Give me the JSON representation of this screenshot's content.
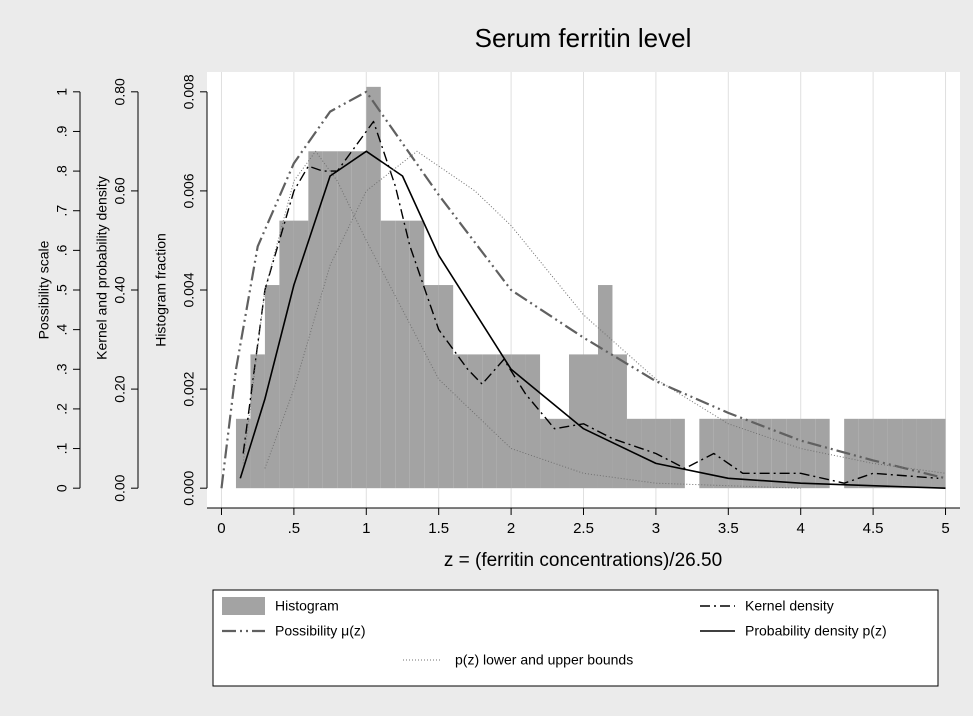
{
  "chart_data": {
    "type": "combo",
    "title": "Serum ferritin level",
    "xlabel": "z = (ferritin concentrations)/26.50",
    "ylabel": "Histogram fraction",
    "y2label": "Kernel and probability density",
    "y3label": "Possibility scale",
    "xlim": [
      -0.1,
      5.1
    ],
    "xticks": [
      0,
      {
        "value": 0.5,
        "label": ".5"
      },
      1,
      1.5,
      2,
      2.5,
      3,
      3.5,
      4,
      4.5,
      5
    ],
    "ylim": [
      -0.0004,
      0.0084
    ],
    "yticks": [
      {
        "value": 0,
        "label": "0.000"
      },
      {
        "value": 0.002,
        "label": "0.002"
      },
      {
        "value": 0.004,
        "label": "0.004"
      },
      {
        "value": 0.006,
        "label": "0.006"
      },
      {
        "value": 0.008,
        "label": "0.008"
      }
    ],
    "y2lim": [
      -0.04,
      0.84
    ],
    "y2ticks": [
      {
        "value": 0,
        "label": "0.00"
      },
      {
        "value": 0.2,
        "label": "0.20"
      },
      {
        "value": 0.4,
        "label": "0.40"
      },
      {
        "value": 0.6,
        "label": "0.60"
      },
      {
        "value": 0.8,
        "label": "0.80"
      }
    ],
    "y3lim": [
      -0.05,
      1.05
    ],
    "y3ticks": [
      0,
      {
        "value": 0.1,
        "label": ".1"
      },
      {
        "value": 0.2,
        "label": ".2"
      },
      {
        "value": 0.3,
        "label": ".3"
      },
      {
        "value": 0.4,
        "label": ".4"
      },
      {
        "value": 0.5,
        "label": ".5"
      },
      {
        "value": 0.6,
        "label": ".6"
      },
      {
        "value": 0.7,
        "label": ".7"
      },
      {
        "value": 0.8,
        "label": ".8"
      },
      {
        "value": 0.9,
        "label": ".9"
      },
      1
    ],
    "grid": true,
    "series": [
      {
        "name": "Histogram",
        "type": "histogram",
        "color": "#a3a3a3",
        "bins": [
          0.1,
          0.2,
          0.3,
          0.4,
          0.5,
          0.6,
          0.7,
          0.8,
          0.9,
          1.0,
          1.1,
          1.2,
          1.3,
          1.4,
          1.5,
          1.6,
          1.7,
          1.8,
          1.9,
          2.0,
          2.1,
          2.2,
          2.3,
          2.4,
          2.5,
          2.6,
          2.7,
          2.8,
          2.9,
          3.0,
          3.1,
          3.2,
          3.3,
          3.4,
          3.5,
          3.6,
          3.7,
          3.8,
          3.9,
          4.0,
          4.1,
          4.2,
          4.3,
          4.4,
          4.5,
          4.6,
          4.7,
          4.8,
          4.9,
          5.0
        ],
        "values": [
          0.0014,
          0.0027,
          0.0041,
          0.0054,
          0.0054,
          0.0068,
          0.0068,
          0.0068,
          0.0068,
          0.0081,
          0.0054,
          0.0054,
          0.0054,
          0.0041,
          0.0041,
          0.0027,
          0.0027,
          0.0027,
          0.0027,
          0.0027,
          0.0027,
          0.0014,
          0.0014,
          0.0027,
          0.0027,
          0.0041,
          0.0027,
          0.0014,
          0.0014,
          0.0014,
          0.0014,
          0,
          0.0014,
          0.0014,
          0.0014,
          0.0014,
          0.0014,
          0.0014,
          0.0014,
          0.0014,
          0.0014,
          0,
          0.0014,
          0.0014,
          0.0014,
          0.0014,
          0.0014,
          0.0014,
          0.0014
        ]
      },
      {
        "name": "Kernel density",
        "type": "line",
        "axis": "y2",
        "color": "#000000",
        "style": "dash-dot",
        "x": [
          0.15,
          0.3,
          0.5,
          0.6,
          0.7,
          0.8,
          0.9,
          1.05,
          1.2,
          1.3,
          1.5,
          1.7,
          1.8,
          1.95,
          2.1,
          2.3,
          2.5,
          2.7,
          3.0,
          3.2,
          3.4,
          3.6,
          4.0,
          4.3,
          4.5,
          4.95
        ],
        "values": [
          0.07,
          0.4,
          0.6,
          0.65,
          0.64,
          0.64,
          0.68,
          0.74,
          0.61,
          0.49,
          0.32,
          0.24,
          0.21,
          0.26,
          0.19,
          0.12,
          0.13,
          0.1,
          0.07,
          0.04,
          0.07,
          0.03,
          0.03,
          0.01,
          0.03,
          0.02
        ]
      },
      {
        "name": "Possibility μ(z)",
        "type": "line",
        "axis": "y3",
        "color": "#606060",
        "style": "dash-dot-dot",
        "x": [
          0,
          0.1,
          0.25,
          0.5,
          0.75,
          1,
          1.5,
          2,
          2.5,
          3,
          3.5,
          4,
          4.5,
          5
        ],
        "values": [
          0,
          0.3,
          0.61,
          0.82,
          0.95,
          1.0,
          0.74,
          0.5,
          0.38,
          0.27,
          0.19,
          0.12,
          0.07,
          0.025
        ]
      },
      {
        "name": "Probability density p(z)",
        "type": "line",
        "axis": "y2",
        "color": "#000000",
        "style": "solid",
        "x": [
          0.13,
          0.3,
          0.5,
          0.75,
          1.0,
          1.25,
          1.5,
          2,
          2.5,
          3,
          3.5,
          4,
          5
        ],
        "values": [
          0.02,
          0.18,
          0.41,
          0.63,
          0.68,
          0.63,
          0.47,
          0.24,
          0.12,
          0.05,
          0.02,
          0.01,
          0
        ]
      },
      {
        "name": "p(z) lower and upper bounds",
        "type": "bounds",
        "axis": "y2",
        "color": "#707070",
        "style": "dotted",
        "lower": {
          "x": [
            0.15,
            0.3,
            0.5,
            0.65,
            0.8,
            1.0,
            1.5,
            2,
            2.5,
            3,
            4
          ],
          "values": [
            0.05,
            0.4,
            0.62,
            0.68,
            0.62,
            0.5,
            0.22,
            0.08,
            0.03,
            0.01,
            0
          ]
        },
        "upper": {
          "x": [
            0.3,
            0.5,
            0.75,
            1.0,
            1.35,
            1.75,
            2,
            2.5,
            3,
            3.5,
            4,
            4.5,
            5
          ],
          "values": [
            0.04,
            0.2,
            0.45,
            0.6,
            0.68,
            0.6,
            0.53,
            0.35,
            0.22,
            0.13,
            0.08,
            0.05,
            0.03
          ]
        }
      }
    ]
  }
}
